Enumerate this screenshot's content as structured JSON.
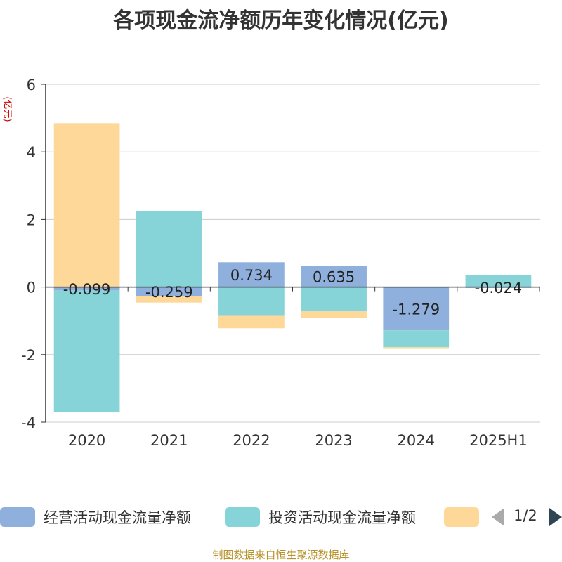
{
  "chart_data": {
    "type": "bar",
    "stacked": true,
    "title": "各项现金流净额历年变化情况(亿元)",
    "ylabel": "(亿元)",
    "ylim": [
      -4,
      6
    ],
    "yticks": [
      6,
      4,
      2,
      0,
      -2,
      -4
    ],
    "grid": true,
    "legend_position": "bottom",
    "categories": [
      "2020",
      "2021",
      "2022",
      "2023",
      "2024",
      "2025H1"
    ],
    "series": [
      {
        "name": "经营活动现金流量净额",
        "color": "#8fb0dc",
        "values": [
          -0.099,
          -0.259,
          0.734,
          0.635,
          -1.279,
          -0.024
        ],
        "labels": [
          "-0.099",
          "-0.259",
          "0.734",
          "0.635",
          "-1.279",
          "-0.024"
        ]
      },
      {
        "name": "投资活动现金流量净额",
        "color": "#87d4d8",
        "values": [
          -3.6,
          2.25,
          -0.85,
          -0.72,
          -0.5,
          0.35
        ]
      },
      {
        "name": "",
        "color": "#fed899",
        "values": [
          4.85,
          -0.2,
          -0.37,
          -0.2,
          -0.05,
          0.0
        ]
      }
    ]
  },
  "legend": {
    "page": "1/2"
  },
  "source": "制图数据来自恒生聚源数据库"
}
